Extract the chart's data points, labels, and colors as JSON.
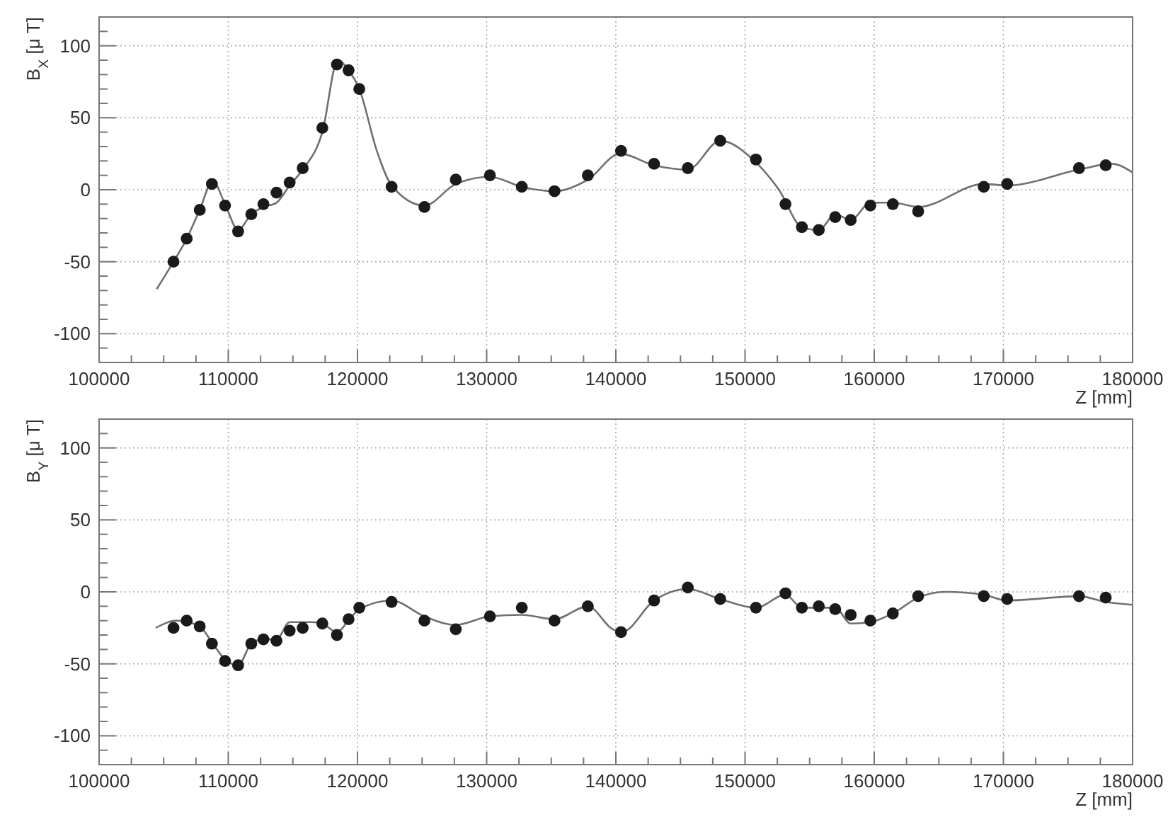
{
  "chart_data": [
    {
      "type": "scatter",
      "ylabel": "B$_{X}$ [μ T]",
      "xlabel": "Z [mm]",
      "xlim": [
        100000,
        180000
      ],
      "ylim": [
        -120,
        120
      ],
      "xticks": [
        100000,
        {
          "value": 102500,
          "label": null
        },
        {
          "value": 105000,
          "label": null
        },
        {
          "value": 107500,
          "label": null
        },
        110000,
        {
          "value": 112500,
          "label": null
        },
        {
          "value": 115000,
          "label": null
        },
        {
          "value": 117500,
          "label": null
        },
        120000,
        {
          "value": 122500,
          "label": null
        },
        {
          "value": 125000,
          "label": null
        },
        {
          "value": 127500,
          "label": null
        },
        130000,
        {
          "value": 132500,
          "label": null
        },
        {
          "value": 135000,
          "label": null
        },
        {
          "value": 137500,
          "label": null
        },
        140000,
        {
          "value": 142500,
          "label": null
        },
        {
          "value": 145000,
          "label": null
        },
        {
          "value": 147500,
          "label": null
        },
        150000,
        {
          "value": 152500,
          "label": null
        },
        {
          "value": 155000,
          "label": null
        },
        {
          "value": 157500,
          "label": null
        },
        160000,
        {
          "value": 162500,
          "label": null
        },
        {
          "value": 165000,
          "label": null
        },
        {
          "value": 167500,
          "label": null
        },
        170000,
        {
          "value": 172500,
          "label": null
        },
        {
          "value": 175000,
          "label": null
        },
        {
          "value": 177500,
          "label": null
        },
        180000
      ],
      "yticks": [
        {
          "value": -110,
          "label": null
        },
        -100,
        {
          "value": -90,
          "label": null
        },
        {
          "value": -80,
          "label": null
        },
        {
          "value": -70,
          "label": null
        },
        {
          "value": -60,
          "label": null
        },
        -50,
        {
          "value": -40,
          "label": null
        },
        {
          "value": -30,
          "label": null
        },
        {
          "value": -20,
          "label": null
        },
        {
          "value": -10,
          "label": null
        },
        0,
        {
          "value": 10,
          "label": null
        },
        {
          "value": 20,
          "label": null
        },
        {
          "value": 30,
          "label": null
        },
        {
          "value": 40,
          "label": null
        },
        50,
        {
          "value": 60,
          "label": null
        },
        {
          "value": 70,
          "label": null
        },
        {
          "value": 80,
          "label": null
        },
        {
          "value": 90,
          "label": null
        },
        100,
        {
          "value": 110,
          "label": null
        }
      ],
      "grid": true,
      "marker": "circle",
      "series": [
        {
          "type": "line",
          "color": "#707070",
          "marker": "none",
          "x": [
            104460,
            105760,
            106780,
            107790,
            108800,
            109750,
            110760,
            111780,
            112720,
            113730,
            114750,
            115760,
            117280,
            118480,
            119310,
            120140,
            121500,
            122640,
            125180,
            127610,
            130250,
            132720,
            135250,
            137830,
            140330,
            142960,
            145570,
            148080,
            150840,
            152620,
            154400,
            155710,
            156980,
            158180,
            159700,
            161440,
            163400,
            168480,
            170290,
            175850,
            178400,
            180000
          ],
          "values": [
            -69,
            -50,
            -34,
            -14,
            6,
            -10,
            -28,
            -17,
            -12,
            -9,
            3,
            14,
            40,
            90,
            83,
            70,
            27,
            3,
            -11,
            4,
            9,
            2,
            -1,
            7,
            25,
            17,
            14,
            34,
            19,
            0,
            -26,
            -28,
            -17,
            -21,
            -9,
            -9,
            -12,
            4,
            3,
            14,
            18,
            12
          ]
        },
        {
          "color": "#1a1a1a",
          "x": [
            105760,
            106780,
            107790,
            108730,
            109750,
            110760,
            111780,
            112720,
            113730,
            114750,
            115760,
            117280,
            118410,
            119310,
            120140,
            122640,
            125180,
            127610,
            130250,
            132720,
            135250,
            137830,
            140400,
            142960,
            145570,
            148080,
            150840,
            153130,
            154400,
            155710,
            156980,
            158180,
            159700,
            161440,
            163400,
            168480,
            170290,
            175850,
            177920
          ],
          "values": [
            -50,
            -34,
            -14,
            4,
            -11,
            -29,
            -17,
            -10,
            -2,
            5,
            15,
            43,
            87,
            83,
            70,
            2,
            -12,
            7,
            10,
            2,
            -1,
            10,
            27,
            18,
            15,
            34,
            21,
            -10,
            -26,
            -28,
            -19,
            -21,
            -11,
            -10,
            -15,
            2,
            4,
            15,
            17
          ]
        }
      ]
    },
    {
      "type": "scatter",
      "ylabel": "B$_{Y}$ [μ T]",
      "xlabel": "Z [mm]",
      "xlim": [
        100000,
        180000
      ],
      "ylim": [
        -120,
        120
      ],
      "xticks": [
        100000,
        {
          "value": 102500,
          "label": null
        },
        {
          "value": 105000,
          "label": null
        },
        {
          "value": 107500,
          "label": null
        },
        110000,
        {
          "value": 112500,
          "label": null
        },
        {
          "value": 115000,
          "label": null
        },
        {
          "value": 117500,
          "label": null
        },
        120000,
        {
          "value": 122500,
          "label": null
        },
        {
          "value": 125000,
          "label": null
        },
        {
          "value": 127500,
          "label": null
        },
        130000,
        {
          "value": 132500,
          "label": null
        },
        {
          "value": 135000,
          "label": null
        },
        {
          "value": 137500,
          "label": null
        },
        140000,
        {
          "value": 142500,
          "label": null
        },
        {
          "value": 145000,
          "label": null
        },
        {
          "value": 147500,
          "label": null
        },
        150000,
        {
          "value": 152500,
          "label": null
        },
        {
          "value": 155000,
          "label": null
        },
        {
          "value": 157500,
          "label": null
        },
        160000,
        {
          "value": 162500,
          "label": null
        },
        {
          "value": 165000,
          "label": null
        },
        {
          "value": 167500,
          "label": null
        },
        170000,
        {
          "value": 172500,
          "label": null
        },
        {
          "value": 175000,
          "label": null
        },
        {
          "value": 177500,
          "label": null
        },
        180000
      ],
      "yticks": [
        {
          "value": -110,
          "label": null
        },
        -100,
        {
          "value": -90,
          "label": null
        },
        {
          "value": -80,
          "label": null
        },
        {
          "value": -70,
          "label": null
        },
        {
          "value": -60,
          "label": null
        },
        -50,
        {
          "value": -40,
          "label": null
        },
        {
          "value": -30,
          "label": null
        },
        {
          "value": -20,
          "label": null
        },
        {
          "value": -10,
          "label": null
        },
        0,
        {
          "value": 10,
          "label": null
        },
        {
          "value": 20,
          "label": null
        },
        {
          "value": 30,
          "label": null
        },
        {
          "value": 40,
          "label": null
        },
        50,
        {
          "value": 60,
          "label": null
        },
        {
          "value": 70,
          "label": null
        },
        {
          "value": 80,
          "label": null
        },
        {
          "value": 90,
          "label": null
        },
        100,
        {
          "value": 110,
          "label": null
        }
      ],
      "grid": true,
      "marker": "circle",
      "series": [
        {
          "type": "line",
          "color": "#707070",
          "marker": "none",
          "x": [
            104380,
            106000,
            107790,
            108730,
            109750,
            110760,
            111780,
            112720,
            113730,
            114750,
            116500,
            117280,
            118410,
            119300,
            120140,
            122640,
            125180,
            127610,
            130250,
            132720,
            135250,
            137830,
            139760,
            140450,
            142960,
            145570,
            148080,
            150840,
            153130,
            154400,
            156980,
            158180,
            159700,
            161440,
            163400,
            165500,
            168480,
            170290,
            175850,
            177920,
            180000
          ],
          "values": [
            -25,
            -20,
            -24,
            -35,
            -47,
            -51,
            -36,
            -33,
            -33,
            -21,
            -21,
            -22,
            -28,
            -20,
            -12,
            -6,
            -17,
            -23,
            -17,
            -16,
            -19,
            -10,
            -26,
            -28,
            -6,
            2,
            -5,
            -11,
            -2,
            -11,
            -11,
            -22,
            -21,
            -15,
            -4,
            0,
            -2,
            -6,
            -3,
            -7,
            -9
          ]
        },
        {
          "color": "#1a1a1a",
          "x": [
            105760,
            106780,
            107790,
            108730,
            109750,
            110760,
            111780,
            112720,
            113730,
            114750,
            115760,
            117280,
            118410,
            119310,
            120140,
            122640,
            125180,
            127610,
            130250,
            132720,
            135250,
            137830,
            140400,
            142960,
            145570,
            148080,
            150840,
            153130,
            154400,
            155710,
            156980,
            158180,
            159700,
            161440,
            163400,
            168480,
            170290,
            175850,
            177920
          ],
          "values": [
            -25,
            -20,
            -24,
            -36,
            -48,
            -51,
            -36,
            -33,
            -34,
            -27,
            -25,
            -22,
            -30,
            -19,
            -11,
            -7,
            -20,
            -26,
            -17,
            -11,
            -20,
            -10,
            -28,
            -6,
            3,
            -5,
            -11,
            -1,
            -11,
            -10,
            -12,
            -16,
            -20,
            -15,
            -3,
            -3,
            -5,
            -3,
            -4
          ]
        }
      ]
    }
  ]
}
